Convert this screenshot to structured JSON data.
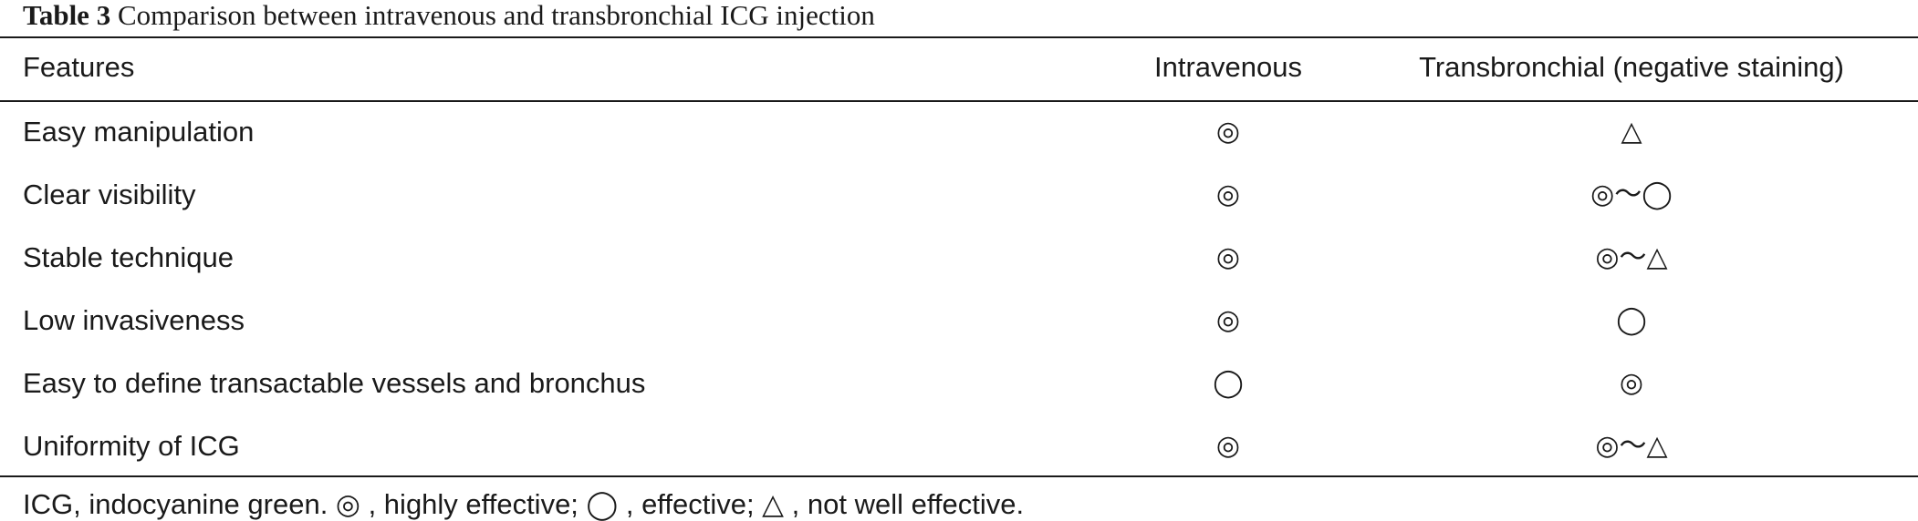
{
  "caption": {
    "label": "Table 3",
    "text": "Comparison between intravenous and transbronchial ICG injection"
  },
  "headers": {
    "feature": "Features",
    "intravenous": "Intravenous",
    "transbronchial": "Transbronchial (negative staining)"
  },
  "rows": [
    {
      "feature": "Easy manipulation",
      "intravenous": "◎",
      "transbronchial": "△"
    },
    {
      "feature": "Clear visibility",
      "intravenous": "◎",
      "transbronchial": "◎～◯"
    },
    {
      "feature": "Stable technique",
      "intravenous": "◎",
      "transbronchial": "◎～△"
    },
    {
      "feature": "Low invasiveness",
      "intravenous": "◎",
      "transbronchial": "◯"
    },
    {
      "feature": "Easy to define transactable vessels and bronchus",
      "intravenous": "◯",
      "transbronchial": "◎"
    },
    {
      "feature": "Uniformity of ICG",
      "intravenous": "◎",
      "transbronchial": "◎～△"
    }
  ],
  "footnote": "ICG, indocyanine green. ◎ , highly effective; ◯ , effective; △ , not well effective."
}
